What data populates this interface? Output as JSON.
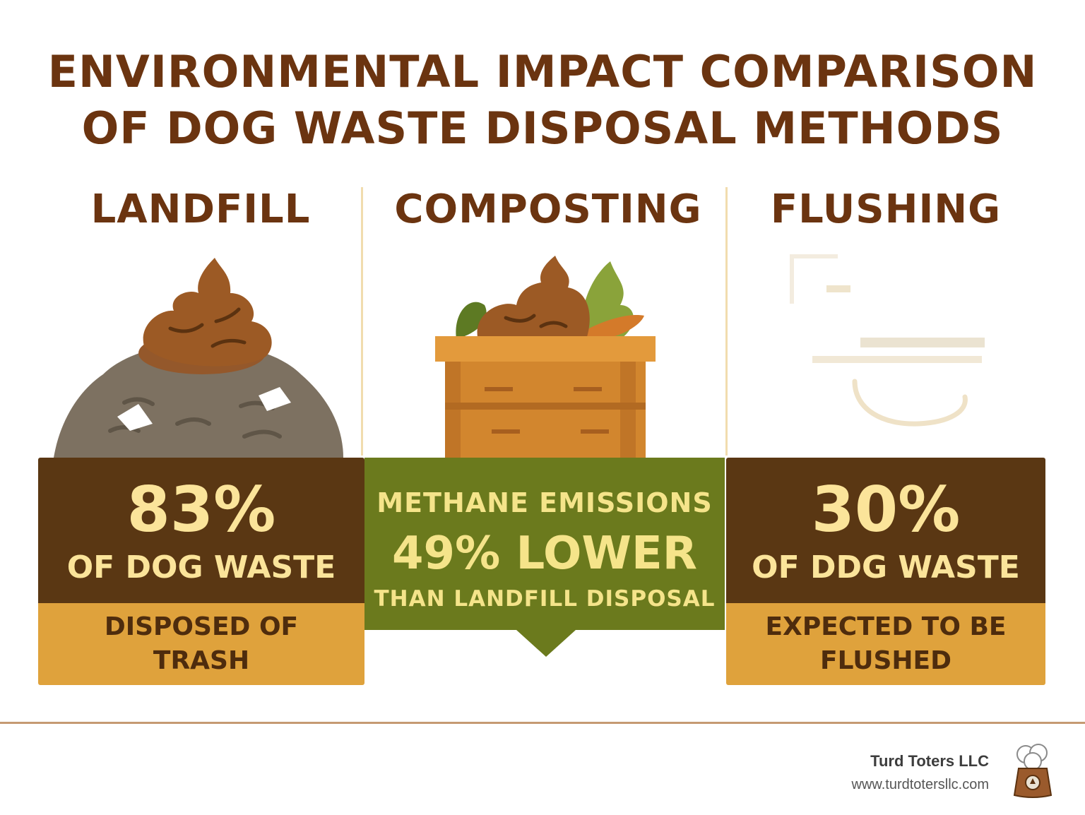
{
  "title": {
    "line1": "ENVIRONMENTAL IMPACT COMPARISON",
    "line2": "OF DOG WASTE DISPOSAL METHODS"
  },
  "columns": [
    {
      "heading": "LANDFILL",
      "illustration": "poop-on-trash-pile-icon",
      "stat_value": "83%",
      "stat_label": "OF DOG WASTE",
      "footer": "DISPOSED OF TRASH"
    },
    {
      "heading": "COMPOSTING",
      "illustration": "compost-crate-icon",
      "line1": "METHANE EMISSIONS",
      "line2": "49% LOWER",
      "line3": "THAN LANDFILL DISPOSAL"
    },
    {
      "heading": "FLUSHING",
      "illustration": "toilet-icon",
      "stat_value": "30%",
      "stat_label": "OF DDG WASTE",
      "footer": "EXPECTED TO BE FLUSHED"
    }
  ],
  "brand": {
    "name": "Turd Toters LLC",
    "url": "www.turdtotersllc.com",
    "logo_icon": "waste-bag-icon"
  },
  "colors": {
    "title_brown": "#6b3410",
    "dark_brown": "#5a3713",
    "gold": "#dfa23c",
    "olive_green": "#6b7a1d",
    "cream_text": "#fbe49a"
  }
}
